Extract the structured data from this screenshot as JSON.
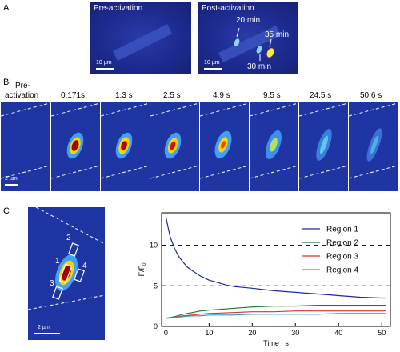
{
  "panels": {
    "a": "A",
    "b": "B",
    "c": "C"
  },
  "panel_a": {
    "pre_title": "Pre-activation",
    "post_title": "Post-activation",
    "scale_left": "10 µm",
    "scale_right": "10 µm",
    "annotations": [
      "20 min",
      "35 min",
      "30 min"
    ]
  },
  "panel_b": {
    "pre_label_line1": "Pre-",
    "pre_label_line2": "activation",
    "times": [
      "0.171s",
      "1.3 s",
      "2.5 s",
      "4.9 s",
      "9.5 s",
      "24.5 s",
      "50.6 s"
    ],
    "scale": "2 µm"
  },
  "panel_c": {
    "region_numbers": [
      "1",
      "2",
      "3",
      "4"
    ],
    "scale": "2 µm"
  },
  "chart_data": {
    "type": "line",
    "xlabel": "Time , s",
    "ylabel": "F/F",
    "ylabel_sub": "0",
    "xlim": [
      -1,
      52
    ],
    "ylim": [
      0,
      14
    ],
    "xticks": [
      0,
      10,
      20,
      30,
      40,
      50
    ],
    "yticks": [
      0,
      5,
      10
    ],
    "reference_lines": [
      5,
      10
    ],
    "legend_position": "top-right",
    "series": [
      {
        "name": "Region 1",
        "color": "#1c2a9e",
        "x": [
          0,
          0.5,
          1,
          2,
          3,
          4,
          5,
          6,
          8,
          10,
          12,
          14,
          16,
          20,
          25,
          30,
          35,
          40,
          45,
          50,
          51
        ],
        "y": [
          13.5,
          12.2,
          11.0,
          9.6,
          8.6,
          7.9,
          7.3,
          6.9,
          6.2,
          5.7,
          5.4,
          5.1,
          4.9,
          4.7,
          4.4,
          4.2,
          4.0,
          3.8,
          3.6,
          3.5,
          3.5
        ]
      },
      {
        "name": "Region 2",
        "color": "#1a7a2a",
        "x": [
          0,
          2,
          4,
          6,
          8,
          10,
          15,
          20,
          25,
          30,
          35,
          40,
          45,
          50,
          51
        ],
        "y": [
          1.0,
          1.2,
          1.5,
          1.7,
          1.9,
          2.0,
          2.2,
          2.4,
          2.5,
          2.5,
          2.6,
          2.6,
          2.6,
          2.6,
          2.6
        ]
      },
      {
        "name": "Region 3",
        "color": "#d9342a",
        "x": [
          0,
          2,
          4,
          6,
          8,
          10,
          15,
          20,
          25,
          30,
          35,
          40,
          45,
          50,
          51
        ],
        "y": [
          1.0,
          1.1,
          1.3,
          1.4,
          1.5,
          1.6,
          1.7,
          1.8,
          1.8,
          1.9,
          1.9,
          1.9,
          1.9,
          1.9,
          1.9
        ]
      },
      {
        "name": "Region 4",
        "color": "#2aa0c8",
        "x": [
          0,
          2,
          4,
          6,
          8,
          10,
          15,
          20,
          25,
          30,
          35,
          40,
          45,
          50,
          51
        ],
        "y": [
          1.0,
          1.1,
          1.2,
          1.3,
          1.3,
          1.4,
          1.4,
          1.5,
          1.5,
          1.5,
          1.5,
          1.6,
          1.6,
          1.6,
          1.6
        ]
      }
    ]
  }
}
